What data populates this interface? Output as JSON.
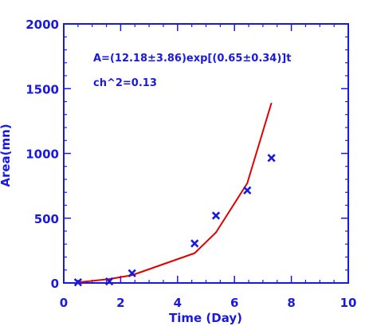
{
  "chart_data": {
    "type": "scatter",
    "xlabel": "Time (Day)",
    "ylabel": "Area(mn)",
    "xlim": [
      0,
      10
    ],
    "ylim": [
      0,
      2000
    ],
    "x_ticks": [
      0,
      2,
      4,
      6,
      8,
      10
    ],
    "y_ticks": [
      0,
      500,
      1000,
      1500,
      2000
    ],
    "x_tick_labels": [
      "0",
      "2",
      "4",
      "6",
      "8",
      "10"
    ],
    "y_tick_labels": [
      "0",
      "500",
      "1000",
      "1500",
      "2000"
    ],
    "grid": false,
    "annotations": [
      "A=(12.18±3.86)exp[(0.65±0.34)]t",
      "ch^2=0.13"
    ],
    "series": [
      {
        "kind": "points",
        "marker": "x",
        "color": "#1a1adf",
        "x": [
          0.5,
          1.6,
          2.4,
          4.6,
          5.35,
          6.45,
          7.3
        ],
        "y": [
          5,
          12,
          75,
          305,
          520,
          715,
          965
        ]
      },
      {
        "kind": "line",
        "color": "#e00000",
        "x": [
          0.5,
          1.6,
          2.4,
          4.6,
          5.35,
          6.45,
          7.3
        ],
        "y": [
          5,
          30,
          60,
          230,
          390,
          770,
          1390
        ]
      }
    ]
  }
}
